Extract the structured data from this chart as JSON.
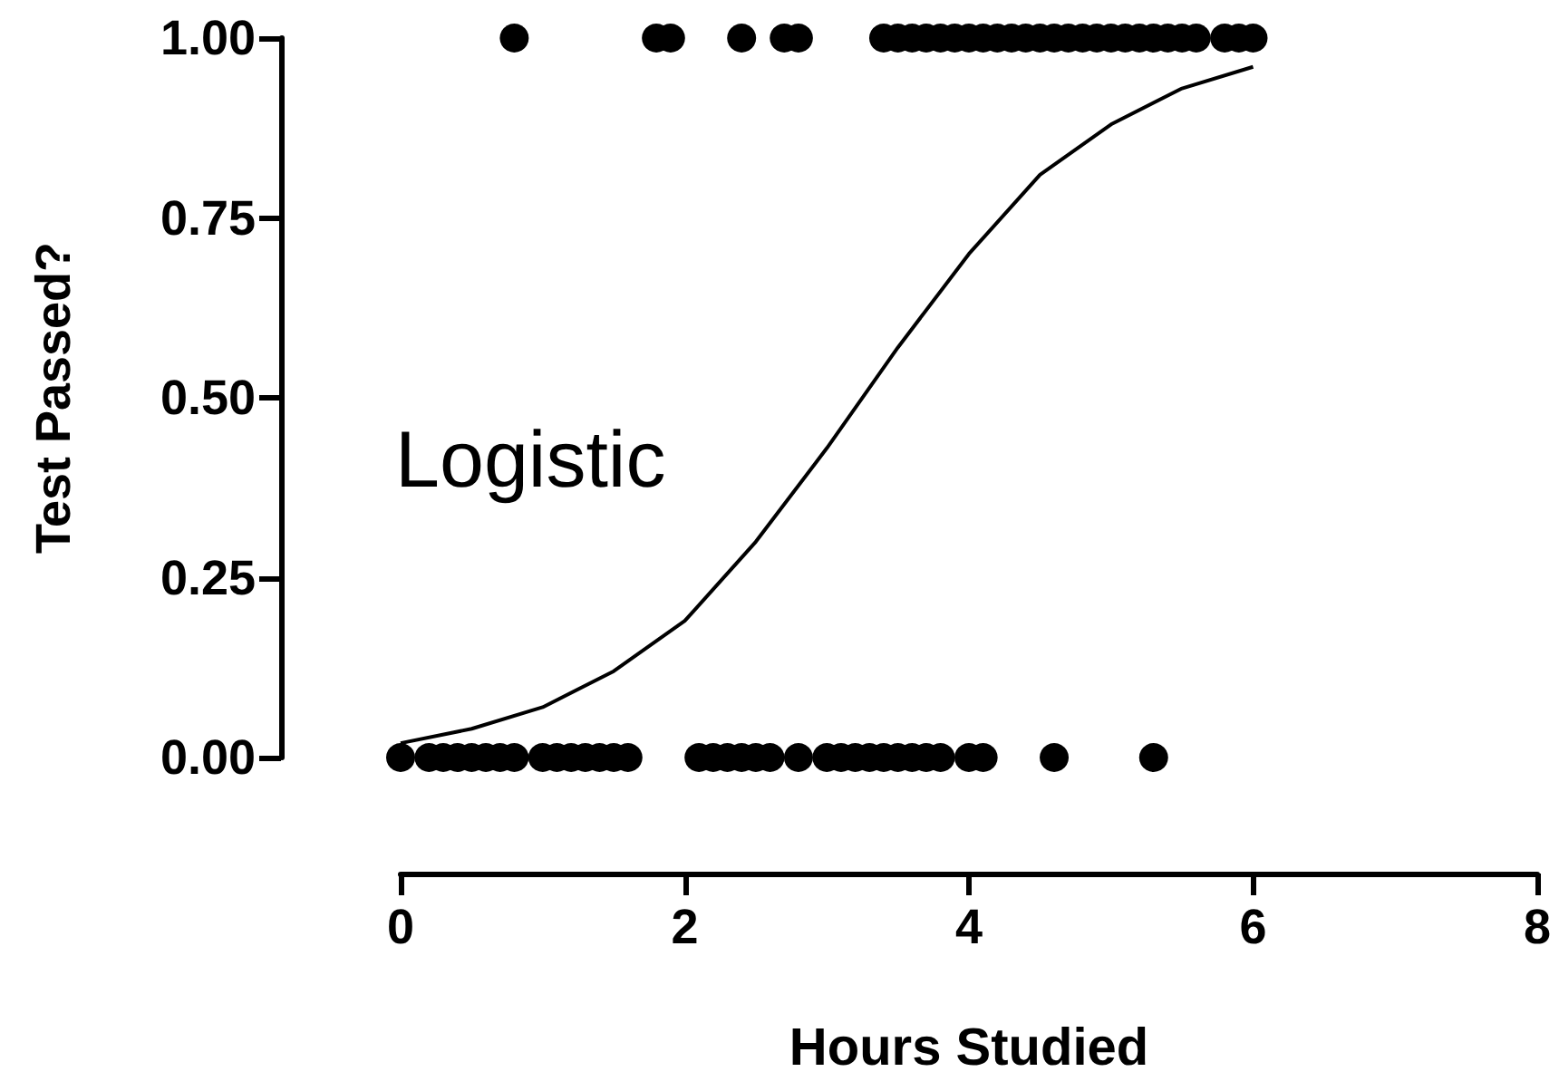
{
  "chart_data": {
    "type": "scatter",
    "xlabel": "Hours Studied",
    "ylabel": "Test Passed?",
    "annotations": [
      "Logistic"
    ],
    "xlim": [
      0,
      8
    ],
    "xticks": [
      0,
      2,
      4,
      6,
      8
    ],
    "ylim": [
      0,
      1
    ],
    "yticks": [
      {
        "value": 0,
        "label": "0.00"
      },
      {
        "value": 0.25,
        "label": "0.25"
      },
      {
        "value": 0.5,
        "label": "0.50"
      },
      {
        "value": 0.75,
        "label": "0.75"
      },
      {
        "value": 1,
        "label": "1.00"
      }
    ],
    "grid": false,
    "marker": "circle",
    "series": [
      {
        "color": "#000000",
        "x": [
          0.8,
          1.8,
          1.9,
          2.4,
          2.7,
          2.8,
          3.4,
          3.5,
          3.6,
          3.7,
          3.8,
          3.9,
          4.0,
          4.1,
          4.2,
          4.3,
          4.4,
          4.5,
          4.6,
          4.7,
          4.8,
          4.9,
          5.0,
          5.1,
          5.2,
          5.3,
          5.4,
          5.5,
          5.6,
          5.8,
          5.9,
          6.0,
          0.0,
          0.2,
          0.3,
          0.4,
          0.5,
          0.6,
          0.7,
          0.8,
          1.0,
          1.1,
          1.2,
          1.3,
          1.4,
          1.5,
          1.6,
          2.1,
          2.2,
          2.3,
          2.4,
          2.5,
          2.6,
          2.8,
          3.0,
          3.1,
          3.2,
          3.3,
          3.4,
          3.5,
          3.6,
          3.7,
          3.8,
          4.0,
          4.1,
          4.6,
          5.3
        ],
        "values": [
          1,
          1,
          1,
          1,
          1,
          1,
          1,
          1,
          1,
          1,
          1,
          1,
          1,
          1,
          1,
          1,
          1,
          1,
          1,
          1,
          1,
          1,
          1,
          1,
          1,
          1,
          1,
          1,
          1,
          1,
          1,
          1,
          0,
          0,
          0,
          0,
          0,
          0,
          0,
          0,
          0,
          0,
          0,
          0,
          0,
          0,
          0,
          0,
          0,
          0,
          0,
          0,
          0,
          0,
          0,
          0,
          0,
          0,
          0,
          0,
          0,
          0,
          0,
          0,
          0,
          0,
          0
        ]
      },
      {
        "type": "line",
        "color": "#000000",
        "marker": "none",
        "line_style": "solid",
        "x": [
          0,
          0.5,
          1,
          1.5,
          2,
          2.5,
          3,
          3.5,
          4,
          4.5,
          5,
          5.5,
          6
        ],
        "values": [
          0.02,
          0.04,
          0.07,
          0.12,
          0.19,
          0.3,
          0.43,
          0.57,
          0.7,
          0.81,
          0.88,
          0.93,
          0.96
        ]
      }
    ]
  }
}
